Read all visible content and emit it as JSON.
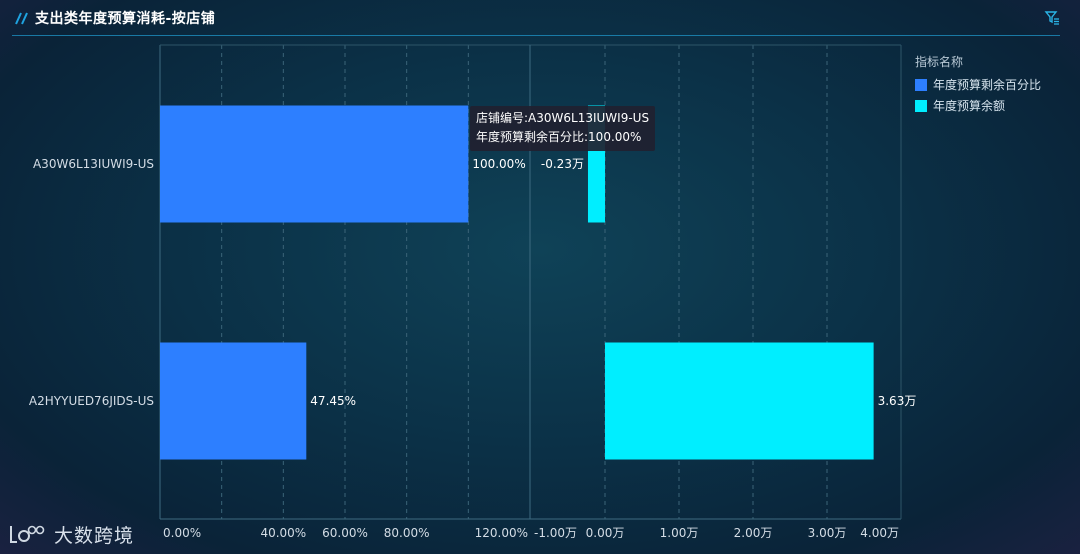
{
  "header": {
    "title": "支出类年度预算消耗-按店铺"
  },
  "legend": {
    "title": "指标名称",
    "items": [
      {
        "label": "年度预算剩余百分比",
        "color": "#2d7fff"
      },
      {
        "label": "年度预算余额",
        "color": "#00eeff"
      }
    ]
  },
  "tooltip": {
    "line1": "店铺编号:A30W6L13IUWI9-US",
    "line2": "年度预算剩余百分比:100.00%"
  },
  "brand": {
    "name": "大数跨境"
  },
  "chart_data": {
    "type": "bar",
    "orientation": "horizontal",
    "categories": [
      "A30W6L13IUWI9-US",
      "A2HYYUED76JIDS-US"
    ],
    "panels": [
      {
        "series_name": "年度预算剩余百分比",
        "color": "#2d7fff",
        "values": [
          100.0,
          47.45
        ],
        "value_labels": [
          "100.00%",
          "47.45%"
        ],
        "xlim": [
          0,
          120
        ],
        "ticks": [
          0,
          20,
          40,
          60,
          80,
          100,
          120
        ],
        "tick_labels": [
          "0.00%",
          "",
          "40.00%",
          "60.00%",
          "80.00%",
          "",
          "120.00%"
        ]
      },
      {
        "series_name": "年度预算余额",
        "color": "#00eeff",
        "values": [
          -0.23,
          3.63
        ],
        "value_labels": [
          "-0.23万",
          "3.63万"
        ],
        "xlim": [
          -1,
          4
        ],
        "ticks": [
          -1,
          0,
          1,
          2,
          3,
          4
        ],
        "tick_labels": [
          "-1.00万",
          "0.00万",
          "1.00万",
          "2.00万",
          "3.00万",
          "4.00万"
        ]
      }
    ],
    "grid": true,
    "legend_position": "top-right"
  }
}
